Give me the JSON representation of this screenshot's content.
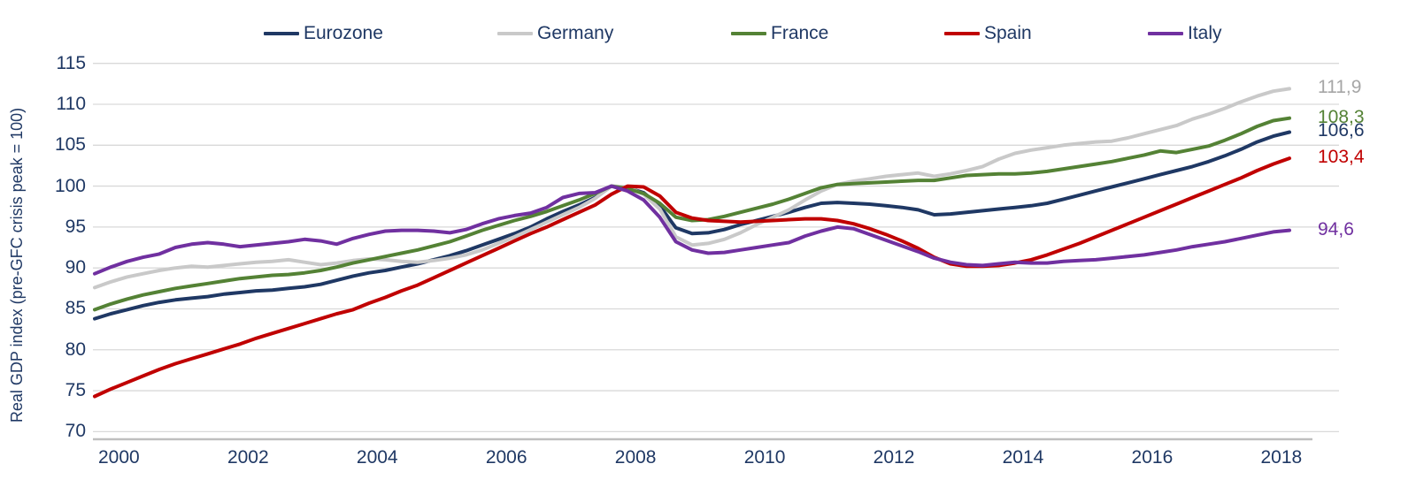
{
  "chart_data": {
    "type": "line",
    "y_axis_title": "Real GDP index (pre-GFC crisis peak = 100)",
    "x_unit": "quarterly",
    "x_start": 2000,
    "x_step": 0.25,
    "x_end": 2018.5,
    "x_tick_labels": [
      "2000",
      "2002",
      "2004",
      "2006",
      "2008",
      "2010",
      "2012",
      "2014",
      "2016",
      "2018"
    ],
    "y_ticks": [
      70,
      75,
      80,
      85,
      90,
      95,
      100,
      105,
      110,
      115
    ],
    "ylim": [
      70,
      115
    ],
    "grid": "horizontal",
    "gridline_color": "#d9d9d9",
    "axis_line_color": "#bfbfbf",
    "legend_position": "top",
    "decimal_separator": ",",
    "series": [
      {
        "name": "Eurozone",
        "color": "#1f3864",
        "label_color": "#1f3864",
        "end_label": "106,6",
        "end_value": 106.6,
        "values": [
          83.8,
          84.4,
          84.9,
          85.4,
          85.8,
          86.1,
          86.3,
          86.5,
          86.8,
          87.0,
          87.2,
          87.3,
          87.5,
          87.7,
          88.0,
          88.5,
          89.0,
          89.4,
          89.7,
          90.1,
          90.5,
          91.0,
          91.5,
          92.1,
          92.8,
          93.5,
          94.2,
          95.0,
          96.0,
          96.9,
          97.7,
          98.6,
          100.0,
          99.8,
          99.2,
          97.6,
          94.9,
          94.2,
          94.3,
          94.7,
          95.3,
          95.8,
          96.3,
          96.8,
          97.4,
          97.9,
          98.0,
          97.9,
          97.8,
          97.6,
          97.4,
          97.1,
          96.5,
          96.6,
          96.8,
          97.0,
          97.2,
          97.4,
          97.6,
          97.9,
          98.4,
          98.9,
          99.4,
          99.9,
          100.4,
          100.9,
          101.4,
          101.9,
          102.4,
          103.0,
          103.7,
          104.5,
          105.4,
          106.1,
          106.6
        ]
      },
      {
        "name": "Germany",
        "color": "#c9c9c9",
        "label_color": "#a6a6a6",
        "end_label": "111,9",
        "end_value": 111.9,
        "values": [
          87.6,
          88.3,
          88.9,
          89.3,
          89.7,
          90.0,
          90.2,
          90.1,
          90.3,
          90.5,
          90.7,
          90.8,
          91.0,
          90.7,
          90.4,
          90.6,
          90.9,
          91.1,
          91.0,
          90.8,
          90.7,
          90.9,
          91.2,
          91.6,
          92.2,
          93.0,
          93.8,
          94.7,
          95.6,
          96.5,
          97.4,
          98.5,
          100.0,
          99.9,
          99.0,
          97.2,
          93.8,
          92.8,
          93.0,
          93.5,
          94.3,
          95.3,
          96.2,
          97.1,
          98.3,
          99.4,
          100.2,
          100.6,
          100.9,
          101.2,
          101.4,
          101.6,
          101.2,
          101.5,
          101.9,
          102.4,
          103.3,
          104.0,
          104.4,
          104.7,
          105.0,
          105.2,
          105.4,
          105.5,
          105.9,
          106.4,
          106.9,
          107.4,
          108.2,
          108.8,
          109.5,
          110.3,
          111.0,
          111.6,
          111.9
        ]
      },
      {
        "name": "France",
        "color": "#548235",
        "label_color": "#548235",
        "end_label": "108,3",
        "end_value": 108.3,
        "values": [
          84.9,
          85.6,
          86.2,
          86.7,
          87.1,
          87.5,
          87.8,
          88.1,
          88.4,
          88.7,
          88.9,
          89.1,
          89.2,
          89.4,
          89.7,
          90.1,
          90.6,
          91.0,
          91.4,
          91.8,
          92.2,
          92.7,
          93.2,
          93.9,
          94.6,
          95.2,
          95.8,
          96.3,
          96.9,
          97.6,
          98.3,
          99.1,
          100.0,
          99.7,
          99.1,
          97.9,
          96.2,
          95.8,
          95.9,
          96.3,
          96.8,
          97.3,
          97.8,
          98.4,
          99.1,
          99.8,
          100.2,
          100.3,
          100.4,
          100.5,
          100.6,
          100.7,
          100.7,
          101.0,
          101.3,
          101.4,
          101.5,
          101.5,
          101.6,
          101.8,
          102.1,
          102.4,
          102.7,
          103.0,
          103.4,
          103.8,
          104.3,
          104.1,
          104.5,
          104.9,
          105.6,
          106.4,
          107.3,
          108.0,
          108.3
        ]
      },
      {
        "name": "Spain",
        "color": "#c00000",
        "label_color": "#c00000",
        "end_label": "103,4",
        "end_value": 103.4,
        "values": [
          74.3,
          75.2,
          76.0,
          76.8,
          77.6,
          78.3,
          78.9,
          79.5,
          80.1,
          80.7,
          81.4,
          82.0,
          82.6,
          83.2,
          83.8,
          84.4,
          84.9,
          85.7,
          86.4,
          87.2,
          87.9,
          88.8,
          89.7,
          90.6,
          91.5,
          92.4,
          93.3,
          94.2,
          95.0,
          95.9,
          96.8,
          97.7,
          99.0,
          100.0,
          99.9,
          98.8,
          96.8,
          96.1,
          95.8,
          95.7,
          95.6,
          95.7,
          95.8,
          95.9,
          96.0,
          96.0,
          95.8,
          95.4,
          94.8,
          94.1,
          93.3,
          92.4,
          91.3,
          90.5,
          90.2,
          90.2,
          90.3,
          90.6,
          91.0,
          91.6,
          92.3,
          93.0,
          93.8,
          94.6,
          95.4,
          96.2,
          97.0,
          97.8,
          98.6,
          99.4,
          100.2,
          101.0,
          101.9,
          102.7,
          103.4
        ]
      },
      {
        "name": "Italy",
        "color": "#7030a0",
        "label_color": "#7030a0",
        "end_label": "94,6",
        "end_value": 94.6,
        "values": [
          89.3,
          90.1,
          90.8,
          91.3,
          91.7,
          92.5,
          92.9,
          93.1,
          92.9,
          92.6,
          92.8,
          93.0,
          93.2,
          93.5,
          93.3,
          92.9,
          93.6,
          94.1,
          94.5,
          94.6,
          94.6,
          94.5,
          94.3,
          94.7,
          95.4,
          96.0,
          96.4,
          96.7,
          97.4,
          98.6,
          99.1,
          99.2,
          100.0,
          99.4,
          98.3,
          96.2,
          93.2,
          92.2,
          91.8,
          91.9,
          92.2,
          92.5,
          92.8,
          93.1,
          93.9,
          94.5,
          95.0,
          94.8,
          94.1,
          93.4,
          92.7,
          92.0,
          91.2,
          90.7,
          90.4,
          90.3,
          90.5,
          90.7,
          90.6,
          90.6,
          90.8,
          90.9,
          91.0,
          91.2,
          91.4,
          91.6,
          91.9,
          92.2,
          92.6,
          92.9,
          93.2,
          93.6,
          94.0,
          94.4,
          94.6
        ]
      }
    ]
  },
  "legend_left_offsets": [
    298,
    562,
    826,
    1067,
    1297
  ],
  "text_color": "#1f3864"
}
